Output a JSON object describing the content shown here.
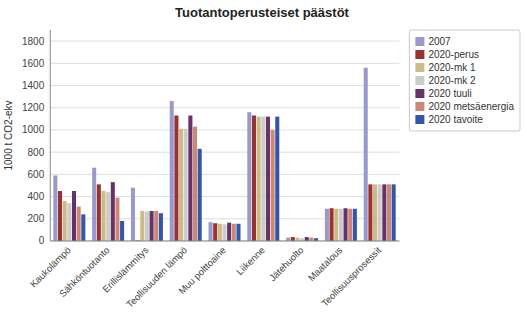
{
  "chart_data": {
    "type": "bar",
    "title": "Tuotantoperusteiset päästöt",
    "ylabel": "1000 t CO2-ekv",
    "categories": [
      "Kaukolämpö",
      "Sähköntuotanto",
      "Erillislämmitys",
      "Teollisuuden lämpö",
      "Muu polttoaine",
      "Liikenne",
      "Jätehuolto",
      "Maatalous",
      "Teollisuusprosessit"
    ],
    "series": [
      {
        "name": "2007",
        "color": "#9999cc",
        "values": [
          590,
          660,
          480,
          1260,
          170,
          1160,
          30,
          290,
          1560
        ]
      },
      {
        "name": "2020-perus",
        "color": "#993333",
        "values": [
          450,
          510,
          5,
          1130,
          160,
          1130,
          35,
          295,
          510
        ]
      },
      {
        "name": "2020-mk 1",
        "color": "#ccbb88",
        "values": [
          360,
          450,
          270,
          1010,
          155,
          1120,
          30,
          290,
          510
        ]
      },
      {
        "name": "2020-mk 2",
        "color": "#cccccc",
        "values": [
          340,
          440,
          265,
          1010,
          150,
          1120,
          25,
          290,
          510
        ]
      },
      {
        "name": "2020 tuuli",
        "color": "#663366",
        "values": [
          450,
          530,
          270,
          1130,
          165,
          1120,
          35,
          295,
          510
        ]
      },
      {
        "name": "2020 metsäenergia",
        "color": "#cc8877",
        "values": [
          310,
          390,
          270,
          1030,
          155,
          1000,
          30,
          290,
          510
        ]
      },
      {
        "name": "2020 tavoite",
        "color": "#3355aa",
        "values": [
          240,
          180,
          250,
          830,
          155,
          1120,
          25,
          290,
          510
        ]
      }
    ],
    "ylim": [
      0,
      1900
    ],
    "yticks": [
      0,
      200,
      400,
      600,
      800,
      1000,
      1200,
      1400,
      1600,
      1800
    ],
    "grid": true,
    "legend": "right"
  }
}
